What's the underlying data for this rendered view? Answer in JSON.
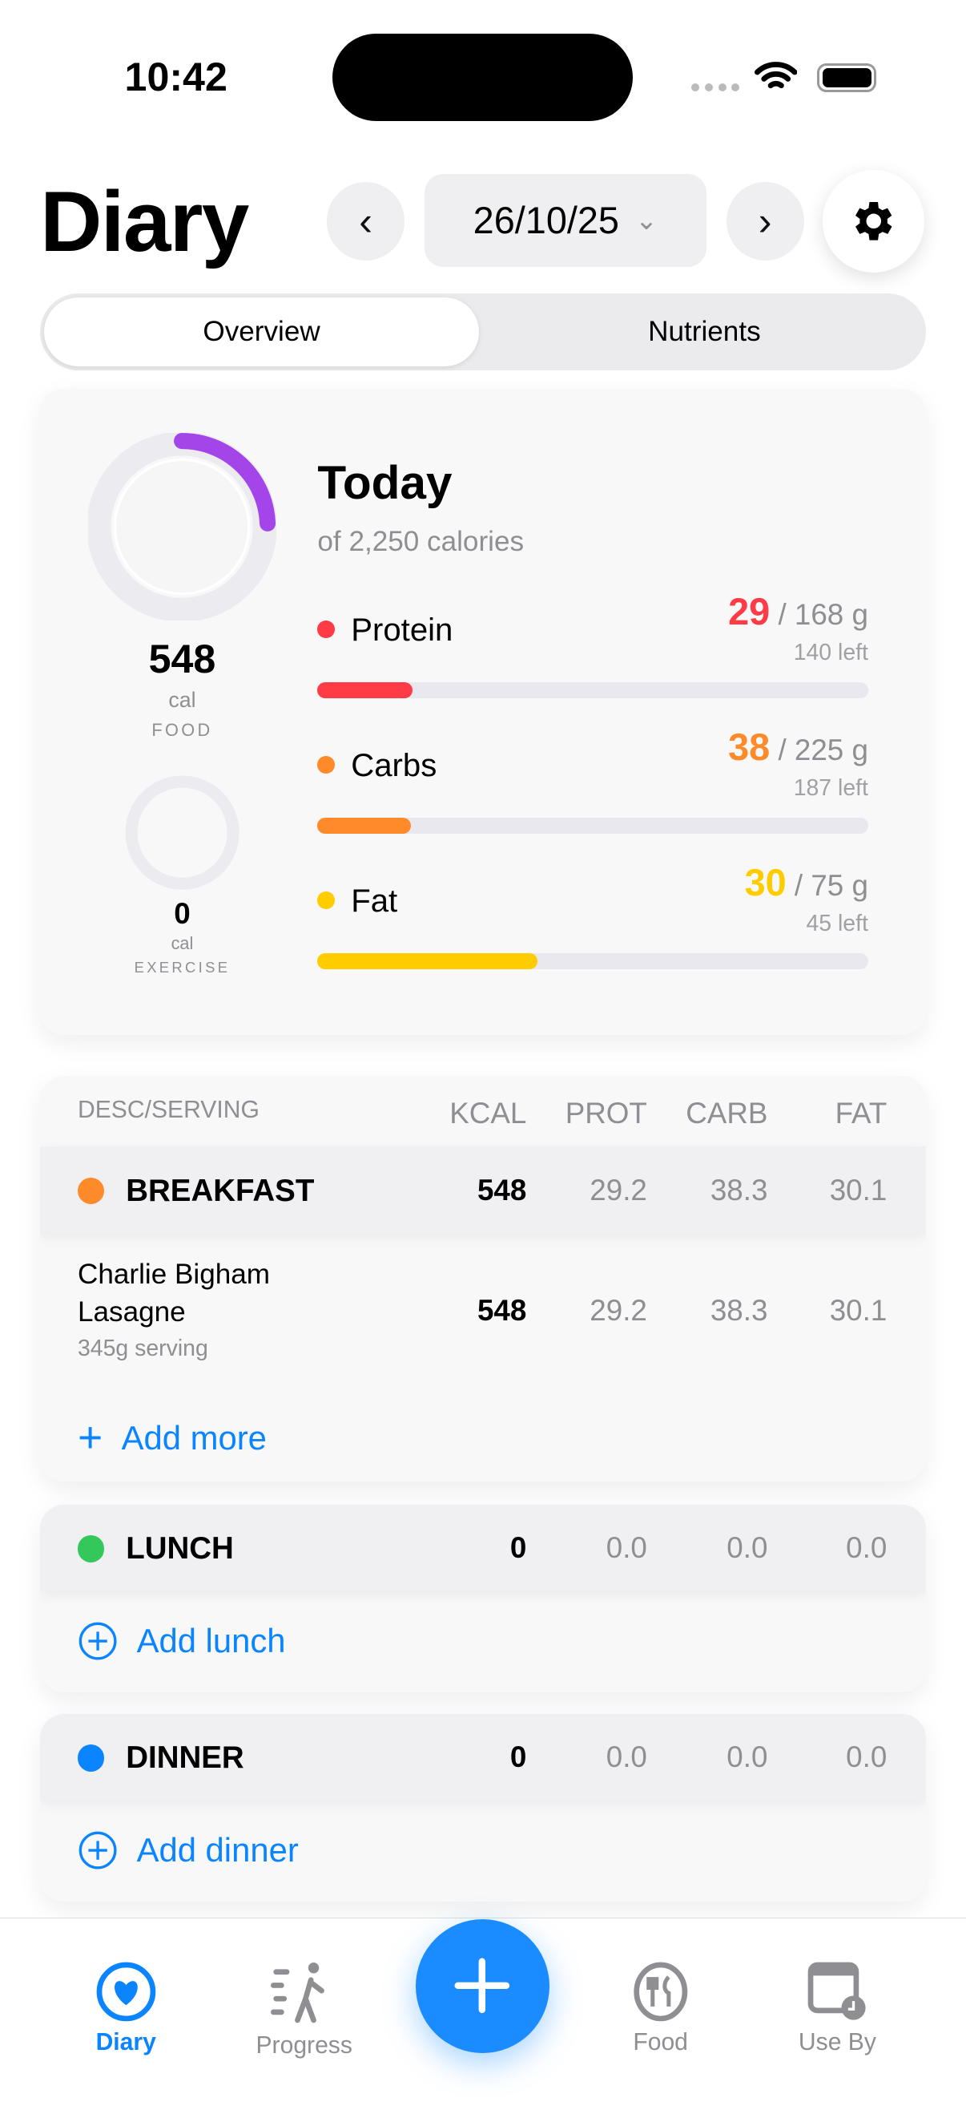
{
  "status_bar": {
    "time": "10:42"
  },
  "header": {
    "title": "Diary",
    "date": "26/10/25",
    "prev_icon": "chevron-left",
    "next_icon": "chevron-right",
    "settings_icon": "gear"
  },
  "tabs": [
    {
      "label": "Overview",
      "selected": true
    },
    {
      "label": "Nutrients",
      "selected": false
    }
  ],
  "summary": {
    "title": "Today",
    "subtitle": "of 2,250 calories",
    "food": {
      "value": "548",
      "unit": "cal",
      "label": "FOOD",
      "progress": 0.2436
    },
    "exercise": {
      "value": "0",
      "unit": "cal",
      "label": "EXERCISE",
      "progress": 0
    },
    "ring_color": "#a445ea",
    "macros": [
      {
        "name": "Protein",
        "eaten": "29",
        "target": "/ 168 g",
        "left": "140 left",
        "color": "#ff3b45",
        "progress": 0.173
      },
      {
        "name": "Carbs",
        "eaten": "38",
        "target": "/ 225 g",
        "left": "187 left",
        "color": "#ff8a2a",
        "progress": 0.169
      },
      {
        "name": "Fat",
        "eaten": "30",
        "target": "/ 75 g",
        "left": "45 left",
        "color": "#ffcc00",
        "progress": 0.4
      }
    ]
  },
  "table": {
    "headers": [
      "DESC/SERVING",
      "KCAL",
      "PROT",
      "CARB",
      "FAT"
    ],
    "breakfast": {
      "name": "BREAKFAST",
      "color": "#ff8a2a",
      "kcal": "548",
      "prot": "29.2",
      "carb": "38.3",
      "fat": "30.1"
    },
    "items": [
      {
        "name_line1": "Charlie Bigham",
        "name_line2": "Lasagne",
        "serving": "345g serving",
        "kcal": "548",
        "prot": "29.2",
        "carb": "38.3",
        "fat": "30.1"
      }
    ],
    "add_more": "Add more",
    "lunch": {
      "name": "LUNCH",
      "color": "#34c759",
      "kcal": "0",
      "prot": "0.0",
      "carb": "0.0",
      "fat": "0.0",
      "add": "Add lunch"
    },
    "dinner": {
      "name": "DINNER",
      "color": "#0a84ff",
      "kcal": "0",
      "prot": "0.0",
      "carb": "0.0",
      "fat": "0.0",
      "add": "Add dinner"
    }
  },
  "tabbar": {
    "items": [
      {
        "label": "Diary",
        "icon": "heart-circle",
        "active": true
      },
      {
        "label": "Progress",
        "icon": "walking-figure"
      },
      {
        "label": "Food",
        "icon": "fork-knife-plate"
      },
      {
        "label": "Use By",
        "icon": "calendar-clock"
      }
    ],
    "add_icon": "plus",
    "accent": "#0a84ff"
  }
}
